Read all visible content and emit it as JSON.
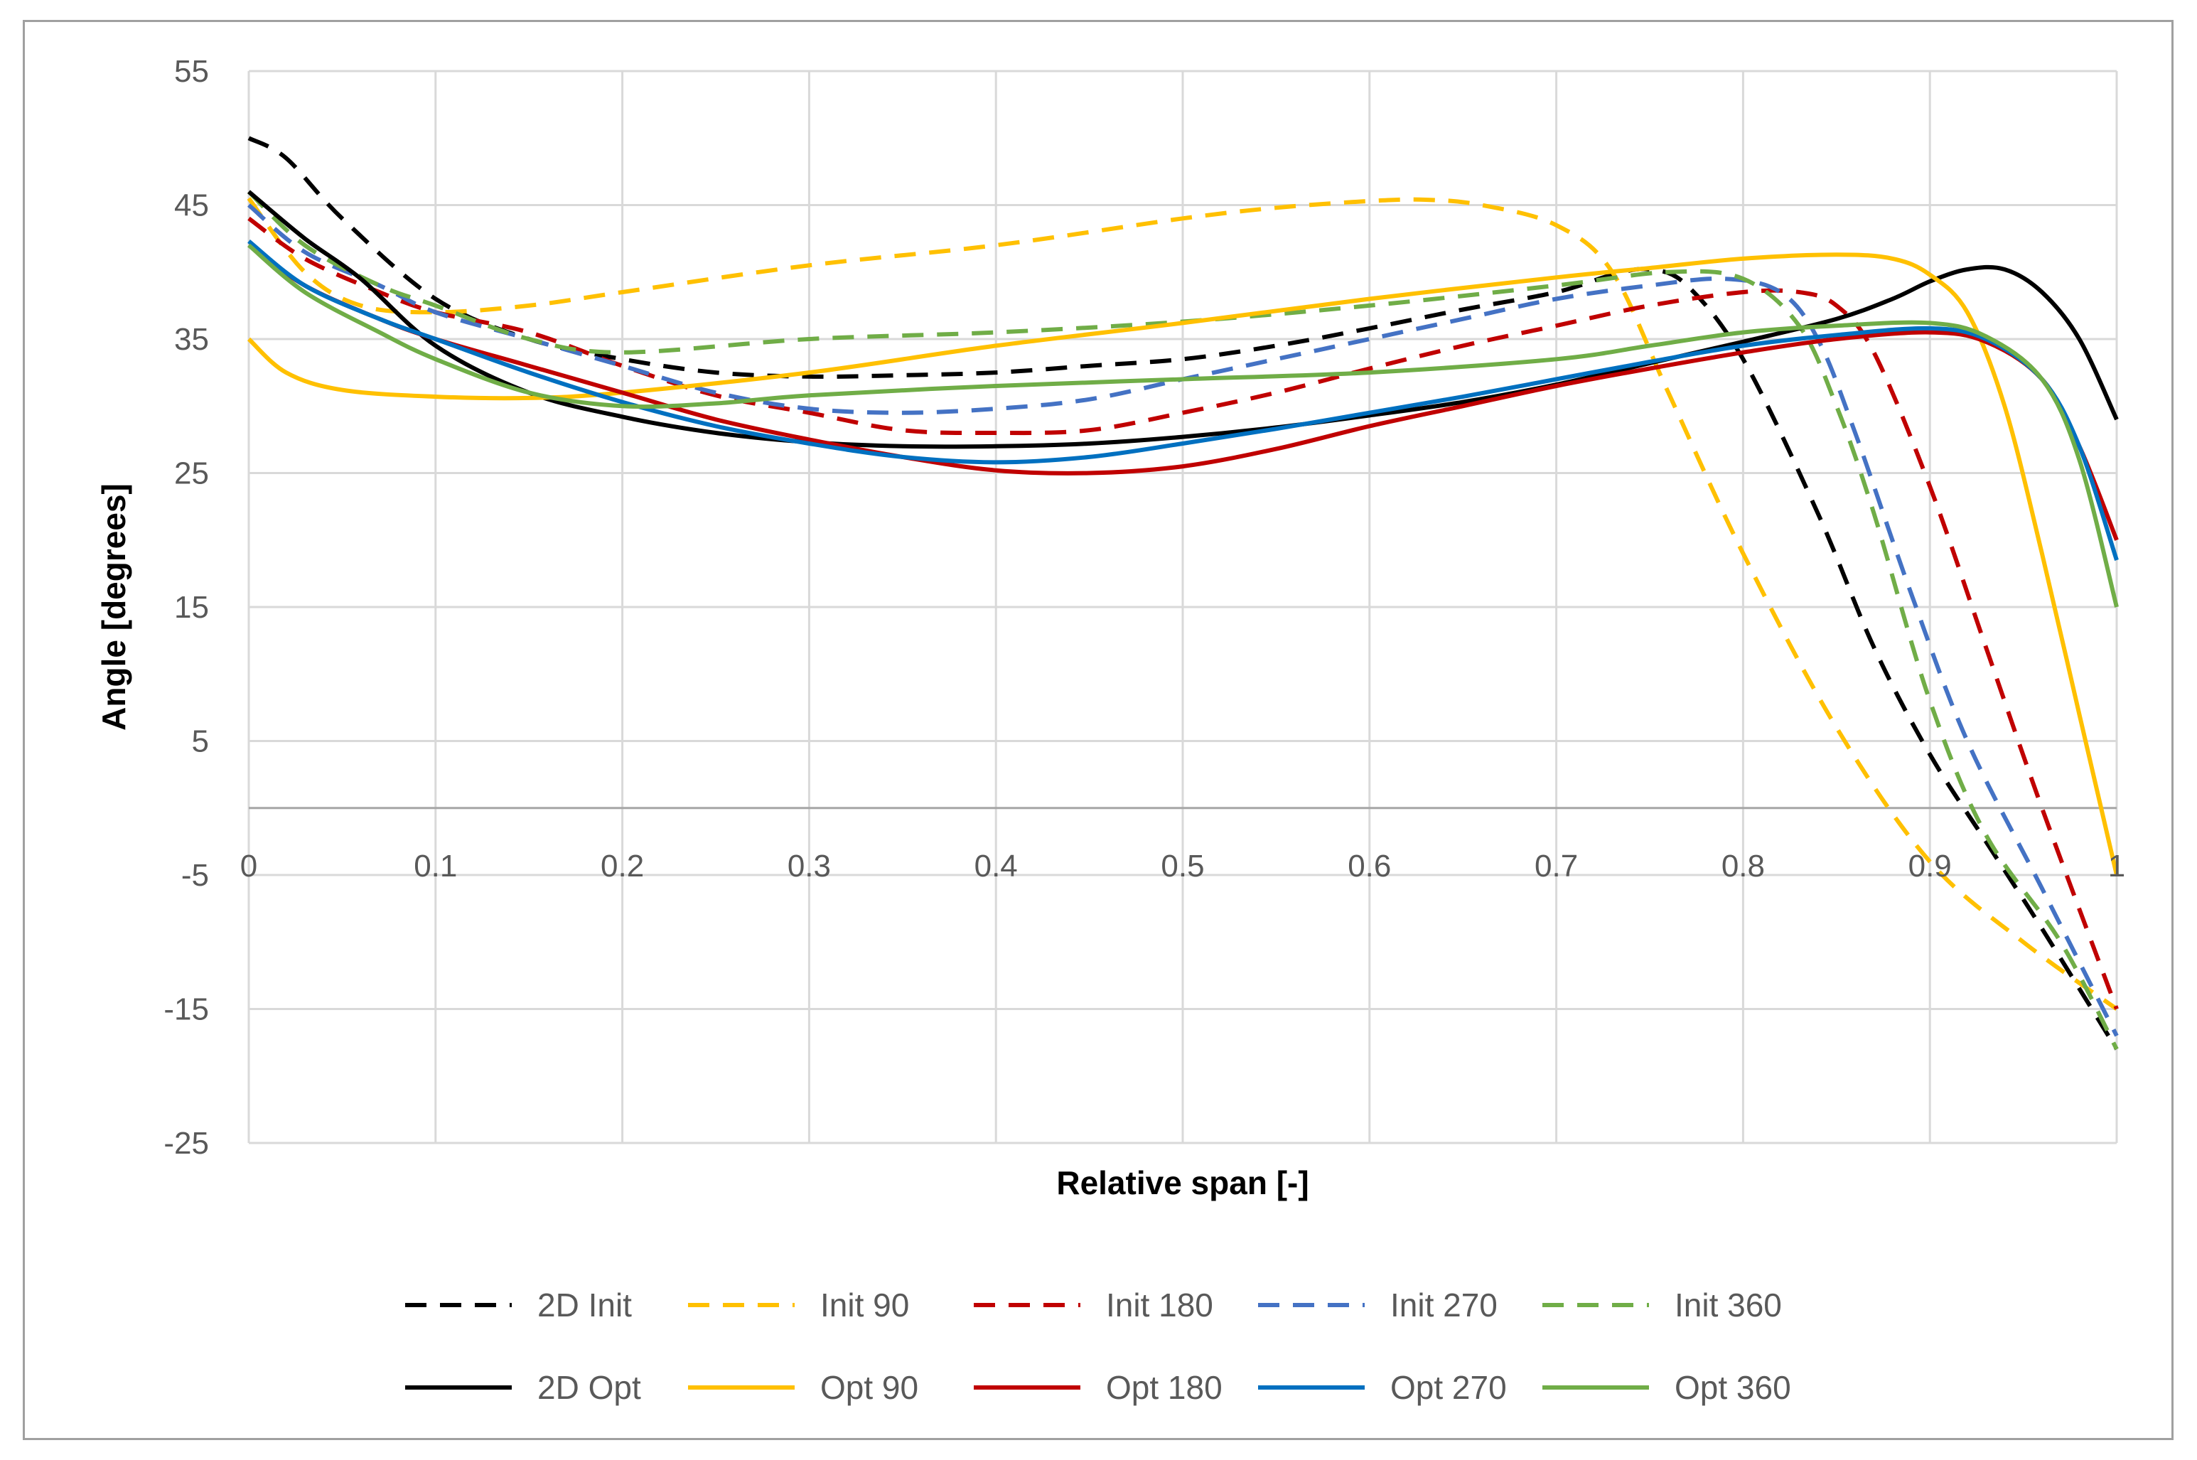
{
  "chart_data": {
    "type": "line",
    "title": "",
    "xlabel": "Relative span [-]",
    "ylabel": "Angle [degrees]",
    "xlim": [
      0,
      1
    ],
    "ylim": [
      -25,
      55
    ],
    "x_ticks": [
      0,
      0.1,
      0.2,
      0.3,
      0.4,
      0.5,
      0.6,
      0.7,
      0.8,
      0.9,
      1
    ],
    "x_tick_labels": [
      "0",
      "0.1",
      "0.2",
      "0.3",
      "0.4",
      "0.5",
      "0.6",
      "0.7",
      "0.8",
      "0.9",
      "1"
    ],
    "y_ticks": [
      -25,
      -15,
      -5,
      5,
      15,
      25,
      35,
      45,
      55
    ],
    "y_tick_labels": [
      "-25",
      "-15",
      "-5",
      "5",
      "15",
      "25",
      "35",
      "45",
      "55"
    ],
    "grid": true,
    "legend_position": "bottom",
    "series": [
      {
        "name": "2D Init",
        "color": "#000000",
        "dash": "dashed",
        "x": [
          0,
          0.02,
          0.05,
          0.1,
          0.15,
          0.2,
          0.25,
          0.3,
          0.35,
          0.4,
          0.45,
          0.5,
          0.55,
          0.6,
          0.65,
          0.7,
          0.73,
          0.75,
          0.77,
          0.8,
          0.84,
          0.87,
          0.9,
          0.93,
          0.96,
          1
        ],
        "y": [
          50,
          48.5,
          44,
          38,
          35,
          33.5,
          32.5,
          32.2,
          32.3,
          32.5,
          33,
          33.5,
          34.5,
          35.8,
          37.2,
          38.5,
          39.8,
          40.2,
          39,
          33.5,
          22,
          12,
          4,
          -2.5,
          -9,
          -18
        ]
      },
      {
        "name": "Init 90",
        "color": "#FFC000",
        "dash": "dashed",
        "x": [
          0,
          0.03,
          0.06,
          0.1,
          0.15,
          0.2,
          0.3,
          0.4,
          0.5,
          0.55,
          0.6,
          0.63,
          0.66,
          0.7,
          0.73,
          0.76,
          0.8,
          0.85,
          0.9,
          0.95,
          1
        ],
        "y": [
          45.5,
          40,
          37.5,
          37,
          37.5,
          38.5,
          40.5,
          42,
          44,
          44.8,
          45.3,
          45.4,
          45,
          43.5,
          40,
          31,
          19,
          6,
          -4,
          -10,
          -15
        ]
      },
      {
        "name": "Init 180",
        "color": "#C00000",
        "dash": "dashed",
        "x": [
          0,
          0.03,
          0.07,
          0.1,
          0.15,
          0.2,
          0.25,
          0.3,
          0.35,
          0.4,
          0.45,
          0.5,
          0.55,
          0.6,
          0.65,
          0.7,
          0.75,
          0.8,
          0.83,
          0.85,
          0.87,
          0.9,
          0.93,
          0.96,
          1
        ],
        "y": [
          44,
          41,
          38.5,
          37,
          35.5,
          33,
          30.8,
          29.5,
          28.2,
          28,
          28.2,
          29.5,
          31,
          32.8,
          34.5,
          36,
          37.5,
          38.5,
          38.5,
          37.5,
          34,
          24,
          12,
          0,
          -15
        ]
      },
      {
        "name": "Init 270",
        "color": "#4472C4",
        "dash": "dashed",
        "x": [
          0,
          0.03,
          0.07,
          0.1,
          0.15,
          0.2,
          0.25,
          0.3,
          0.35,
          0.4,
          0.45,
          0.5,
          0.55,
          0.6,
          0.65,
          0.7,
          0.75,
          0.79,
          0.82,
          0.84,
          0.86,
          0.89,
          0.92,
          0.96,
          1
        ],
        "y": [
          45,
          41.5,
          39,
          37,
          35,
          33,
          31,
          29.8,
          29.5,
          29.8,
          30.5,
          32,
          33.5,
          35,
          36.5,
          38,
          39,
          39.5,
          38.5,
          35,
          28,
          16,
          5,
          -6,
          -17
        ]
      },
      {
        "name": "Init 360",
        "color": "#70AD47",
        "dash": "dashed",
        "x": [
          0,
          0.03,
          0.07,
          0.1,
          0.15,
          0.2,
          0.3,
          0.4,
          0.5,
          0.6,
          0.7,
          0.76,
          0.8,
          0.83,
          0.85,
          0.87,
          0.9,
          0.93,
          0.97,
          1
        ],
        "y": [
          46,
          42,
          39,
          37.5,
          35,
          34,
          35,
          35.5,
          36.3,
          37.5,
          39,
          40,
          39.5,
          36,
          30,
          22,
          8,
          -2,
          -10,
          -18
        ]
      },
      {
        "name": "2D Opt",
        "color": "#000000",
        "dash": "solid",
        "x": [
          0,
          0.03,
          0.06,
          0.1,
          0.15,
          0.2,
          0.25,
          0.3,
          0.35,
          0.4,
          0.45,
          0.5,
          0.55,
          0.6,
          0.65,
          0.7,
          0.75,
          0.8,
          0.85,
          0.88,
          0.9,
          0.92,
          0.94,
          0.96,
          0.98,
          1
        ],
        "y": [
          46,
          42.5,
          39.5,
          34.5,
          31,
          29.2,
          28,
          27.3,
          27,
          27,
          27.2,
          27.7,
          28.4,
          29.3,
          30.3,
          31.6,
          33.2,
          34.8,
          36.5,
          38,
          39.3,
          40.2,
          40.2,
          38.5,
          35,
          29
        ]
      },
      {
        "name": "Opt 90",
        "color": "#FFC000",
        "dash": "solid",
        "x": [
          0,
          0.02,
          0.05,
          0.1,
          0.15,
          0.2,
          0.3,
          0.4,
          0.5,
          0.6,
          0.7,
          0.75,
          0.8,
          0.85,
          0.88,
          0.9,
          0.92,
          0.94,
          0.96,
          0.98,
          1
        ],
        "y": [
          35,
          32.5,
          31.2,
          30.7,
          30.6,
          31,
          32.5,
          34.5,
          36.2,
          38,
          39.6,
          40.3,
          41,
          41.3,
          41,
          39.8,
          37,
          30,
          19,
          7,
          -5
        ]
      },
      {
        "name": "Opt 180",
        "color": "#C00000",
        "dash": "solid",
        "x": [
          0,
          0.03,
          0.07,
          0.1,
          0.15,
          0.2,
          0.25,
          0.3,
          0.35,
          0.4,
          0.45,
          0.5,
          0.55,
          0.6,
          0.65,
          0.7,
          0.75,
          0.8,
          0.85,
          0.9,
          0.93,
          0.96,
          0.98,
          1
        ],
        "y": [
          42,
          39,
          36.5,
          35,
          33,
          31,
          29,
          27.5,
          26.2,
          25.2,
          25,
          25.5,
          26.8,
          28.5,
          30,
          31.5,
          32.8,
          34,
          35,
          35.5,
          34.8,
          32,
          27,
          20
        ]
      },
      {
        "name": "Opt 270",
        "color": "#0070C0",
        "dash": "solid",
        "x": [
          0,
          0.03,
          0.07,
          0.1,
          0.15,
          0.2,
          0.25,
          0.3,
          0.35,
          0.4,
          0.45,
          0.5,
          0.55,
          0.6,
          0.65,
          0.7,
          0.75,
          0.8,
          0.85,
          0.9,
          0.93,
          0.96,
          0.98,
          1
        ],
        "y": [
          42.3,
          39,
          36.5,
          35,
          32.5,
          30.3,
          28.5,
          27.2,
          26.2,
          25.8,
          26.2,
          27.2,
          28.3,
          29.5,
          30.7,
          32,
          33.3,
          34.5,
          35.3,
          35.8,
          35,
          32,
          27,
          18.5
        ]
      },
      {
        "name": "Opt 360",
        "color": "#70AD47",
        "dash": "solid",
        "x": [
          0,
          0.03,
          0.07,
          0.1,
          0.15,
          0.2,
          0.25,
          0.3,
          0.4,
          0.5,
          0.6,
          0.7,
          0.75,
          0.8,
          0.85,
          0.9,
          0.93,
          0.96,
          0.98,
          1
        ],
        "y": [
          42,
          38.5,
          35.5,
          33.5,
          31,
          30,
          30.2,
          30.8,
          31.5,
          32,
          32.5,
          33.5,
          34.5,
          35.5,
          36,
          36.2,
          35.2,
          32,
          26,
          15
        ]
      }
    ]
  }
}
